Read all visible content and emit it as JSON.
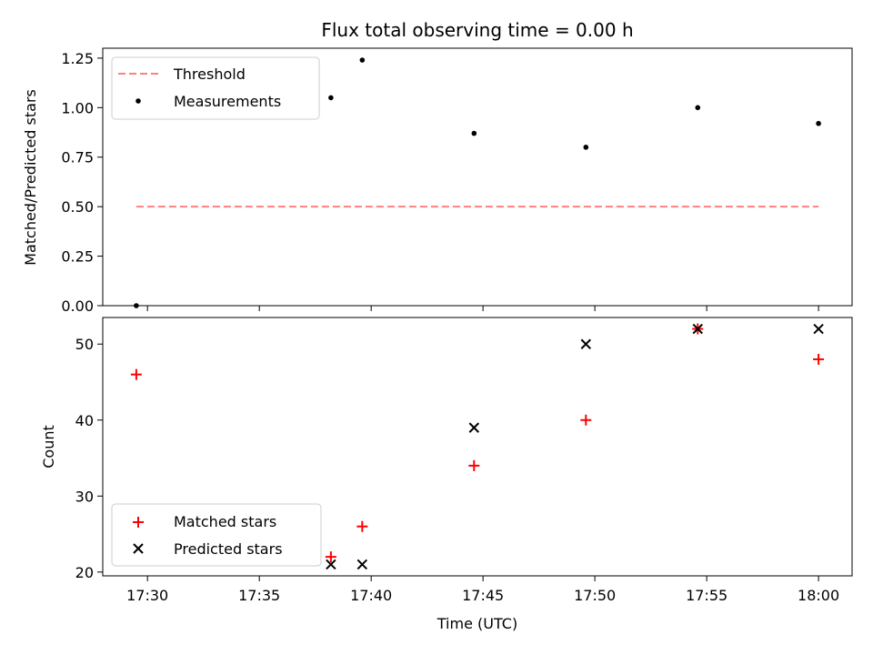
{
  "chart_data": [
    {
      "type": "scatter",
      "title": "Flux total observing time = 0.00 h",
      "ylabel": "Matched/Predicted stars",
      "xlabel": "",
      "xlim": [
        "17:28",
        "18:01.5"
      ],
      "ylim": [
        0,
        1.3
      ],
      "yticks": [
        "0.00",
        "0.25",
        "0.50",
        "0.75",
        "1.00",
        "1.25"
      ],
      "x_tick_labels_shown": false,
      "grid": false,
      "legend": {
        "position": "top-left",
        "entries": [
          "Threshold",
          "Measurements"
        ]
      },
      "series": [
        {
          "name": "Threshold",
          "style": "dashed-line",
          "color": "#ff7f7f",
          "x": [
            "17:29.5",
            "18:00"
          ],
          "y": [
            0.5,
            0.5
          ]
        },
        {
          "name": "Measurements",
          "style": "dot",
          "color": "#000000",
          "x": [
            "17:29.5",
            "17:38.2",
            "17:39.6",
            "17:44.6",
            "17:49.6",
            "17:54.6",
            "18:00"
          ],
          "y": [
            0.0,
            1.05,
            1.24,
            0.87,
            0.8,
            1.0,
            0.92
          ]
        }
      ]
    },
    {
      "type": "scatter",
      "title": "",
      "ylabel": "Count",
      "xlabel": "Time (UTC)",
      "xlim": [
        "17:28",
        "18:01.5"
      ],
      "ylim": [
        19.5,
        53.5
      ],
      "yticks": [
        "20",
        "30",
        "40",
        "50"
      ],
      "xticks": [
        "17:30",
        "17:35",
        "17:40",
        "17:45",
        "17:50",
        "17:55",
        "18:00"
      ],
      "grid": false,
      "legend": {
        "position": "bottom-left",
        "entries": [
          "Matched stars",
          "Predicted stars"
        ]
      },
      "series": [
        {
          "name": "Matched stars",
          "style": "plus",
          "color": "#ff0000",
          "x": [
            "17:29.5",
            "17:38.2",
            "17:39.6",
            "17:44.6",
            "17:49.6",
            "17:54.6",
            "18:00"
          ],
          "y": [
            46,
            22,
            26,
            34,
            40,
            52,
            48
          ]
        },
        {
          "name": "Predicted stars",
          "style": "x",
          "color": "#000000",
          "x": [
            "17:38.2",
            "17:39.6",
            "17:44.6",
            "17:49.6",
            "17:54.6",
            "18:00"
          ],
          "y": [
            21,
            21,
            39,
            50,
            52,
            52
          ]
        }
      ]
    }
  ]
}
